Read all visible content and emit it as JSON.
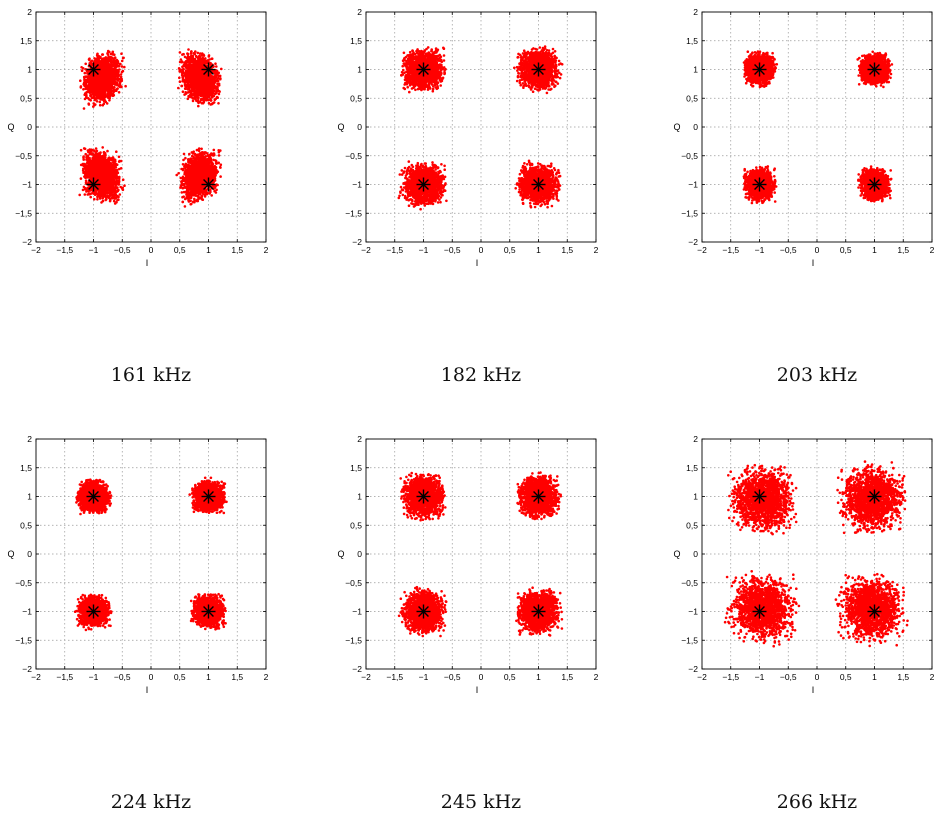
{
  "shared": {
    "xlabel": "I",
    "ylabel": "Q",
    "xlim": [
      -2,
      2
    ],
    "ylim": [
      -2,
      2
    ],
    "x_ticks": [
      -2,
      -1.5,
      -1,
      -0.5,
      0,
      0.5,
      1,
      1.5,
      2
    ],
    "x_tick_labels": [
      "−2",
      "−1,5",
      "−1",
      "−0,5",
      "0",
      "0,5",
      "1",
      "1,5",
      "2"
    ],
    "y_ticks": [
      -2,
      -1.5,
      -1,
      -0.5,
      0,
      0.5,
      1,
      1.5,
      2
    ],
    "y_tick_labels": [
      "−2",
      "−1,5",
      "−1",
      "−0,5",
      "0",
      "0,5",
      "1",
      "1,5",
      "2"
    ],
    "grid": true,
    "point_color": "#ff0000",
    "marker_color": "#000000",
    "ideal_points": [
      [
        -1,
        1
      ],
      [
        1,
        1
      ],
      [
        -1,
        -1
      ],
      [
        1,
        -1
      ]
    ]
  },
  "chart_data": [
    {
      "type": "scatter",
      "caption": "161 kHz",
      "clusters": [
        {
          "center": [
            -0.85,
            0.85
          ],
          "spread": [
            0.42,
            0.52
          ],
          "tilt": 0.25
        },
        {
          "center": [
            0.85,
            0.85
          ],
          "spread": [
            0.42,
            0.52
          ],
          "tilt": -0.25
        },
        {
          "center": [
            -0.85,
            -0.85
          ],
          "spread": [
            0.42,
            0.52
          ],
          "tilt": -0.25
        },
        {
          "center": [
            0.85,
            -0.85
          ],
          "spread": [
            0.42,
            0.52
          ],
          "tilt": 0.25
        }
      ]
    },
    {
      "type": "scatter",
      "caption": "182 kHz",
      "clusters": [
        {
          "center": [
            -1,
            1
          ],
          "spread": [
            0.44,
            0.44
          ],
          "tilt": 0
        },
        {
          "center": [
            1,
            1
          ],
          "spread": [
            0.44,
            0.44
          ],
          "tilt": 0
        },
        {
          "center": [
            -1,
            -1
          ],
          "spread": [
            0.44,
            0.44
          ],
          "tilt": 0
        },
        {
          "center": [
            1,
            -1
          ],
          "spread": [
            0.44,
            0.44
          ],
          "tilt": 0
        }
      ]
    },
    {
      "type": "scatter",
      "caption": "203 kHz",
      "clusters": [
        {
          "center": [
            -1,
            1
          ],
          "spread": [
            0.32,
            0.34
          ],
          "tilt": 0
        },
        {
          "center": [
            1,
            1
          ],
          "spread": [
            0.32,
            0.34
          ],
          "tilt": 0
        },
        {
          "center": [
            -1,
            -1
          ],
          "spread": [
            0.32,
            0.34
          ],
          "tilt": 0
        },
        {
          "center": [
            1,
            -1
          ],
          "spread": [
            0.32,
            0.34
          ],
          "tilt": 0
        }
      ]
    },
    {
      "type": "scatter",
      "caption": "224 kHz",
      "clusters": [
        {
          "center": [
            -1,
            1
          ],
          "spread": [
            0.34,
            0.34
          ],
          "tilt": 0
        },
        {
          "center": [
            1,
            1
          ],
          "spread": [
            0.34,
            0.34
          ],
          "tilt": 0
        },
        {
          "center": [
            -1,
            -1
          ],
          "spread": [
            0.34,
            0.34
          ],
          "tilt": 0
        },
        {
          "center": [
            1,
            -1
          ],
          "spread": [
            0.34,
            0.34
          ],
          "tilt": 0
        }
      ]
    },
    {
      "type": "scatter",
      "caption": "245 kHz",
      "clusters": [
        {
          "center": [
            -1,
            1
          ],
          "spread": [
            0.44,
            0.46
          ],
          "tilt": 0
        },
        {
          "center": [
            1,
            1
          ],
          "spread": [
            0.44,
            0.46
          ],
          "tilt": 0
        },
        {
          "center": [
            -1,
            -1
          ],
          "spread": [
            0.44,
            0.46
          ],
          "tilt": 0
        },
        {
          "center": [
            1,
            -1
          ],
          "spread": [
            0.44,
            0.46
          ],
          "tilt": 0
        }
      ]
    },
    {
      "type": "scatter",
      "caption": "266 kHz",
      "clusters": [
        {
          "center": [
            -0.95,
            0.95
          ],
          "spread": [
            0.68,
            0.68
          ],
          "tilt": 0
        },
        {
          "center": [
            0.95,
            0.95
          ],
          "spread": [
            0.68,
            0.68
          ],
          "tilt": 0
        },
        {
          "center": [
            -0.95,
            -0.95
          ],
          "spread": [
            0.68,
            0.68
          ],
          "tilt": 0
        },
        {
          "center": [
            0.95,
            -0.95
          ],
          "spread": [
            0.68,
            0.68
          ],
          "tilt": 0
        }
      ]
    }
  ]
}
